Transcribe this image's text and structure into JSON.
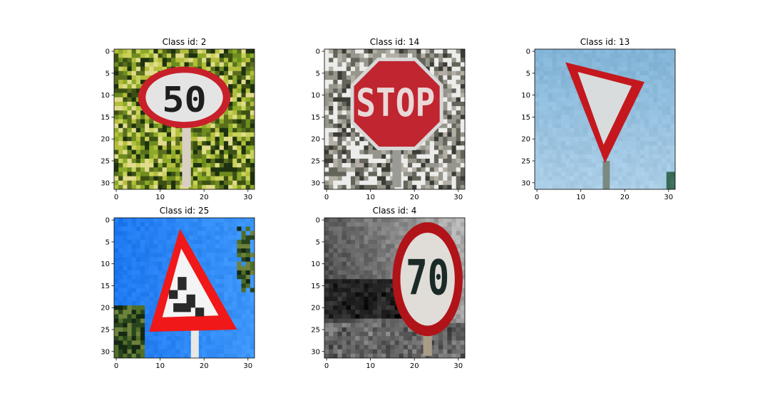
{
  "chart_data": [
    {
      "type": "image",
      "title": "Class id: 2",
      "xticks": [
        0,
        10,
        20,
        30
      ],
      "yticks": [
        0,
        5,
        10,
        15,
        20,
        25,
        30
      ],
      "xlim": [
        -0.5,
        31.5
      ],
      "ylim": [
        31.5,
        -0.5
      ],
      "scene": {
        "bg": "foliage",
        "sign": "circle",
        "rim": "#c8202a",
        "face": "#e4e4e4",
        "text": "50",
        "text_color": "#1e1e1e"
      }
    },
    {
      "type": "image",
      "title": "Class id: 14",
      "xticks": [
        0,
        10,
        20,
        30
      ],
      "yticks": [
        0,
        5,
        10,
        15,
        20,
        25,
        30
      ],
      "xlim": [
        -0.5,
        31.5
      ],
      "ylim": [
        31.5,
        -0.5
      ],
      "scene": {
        "bg": "noise",
        "sign": "octagon",
        "rim": "#d8d8d8",
        "face": "#c02630",
        "text": "STOP",
        "text_color": "#e8d8d8"
      }
    },
    {
      "type": "image",
      "title": "Class id: 13",
      "xticks": [
        0,
        10,
        20,
        30
      ],
      "yticks": [
        0,
        5,
        10,
        15,
        20,
        25,
        30
      ],
      "xlim": [
        -0.5,
        31.5
      ],
      "ylim": [
        31.5,
        -0.5
      ],
      "scene": {
        "bg": "sky",
        "sign": "inverted-triangle",
        "rim": "#c4181e",
        "face": "#d8dcdc",
        "text": "",
        "text_color": "#000000"
      }
    },
    {
      "type": "image",
      "title": "Class id: 25",
      "xticks": [
        0,
        10,
        20,
        30
      ],
      "yticks": [
        0,
        5,
        10,
        15,
        20,
        25,
        30
      ],
      "xlim": [
        -0.5,
        31.5
      ],
      "ylim": [
        31.5,
        -0.5
      ],
      "scene": {
        "bg": "bluesky",
        "sign": "triangle",
        "rim": "#f01818",
        "face": "#f4f4f4",
        "text": "",
        "text_color": "#222222"
      }
    },
    {
      "type": "image",
      "title": "Class id: 4",
      "xticks": [
        0,
        10,
        20,
        30
      ],
      "yticks": [
        0,
        5,
        10,
        15,
        20,
        25,
        30
      ],
      "xlim": [
        -0.5,
        31.5
      ],
      "ylim": [
        31.5,
        -0.5
      ],
      "scene": {
        "bg": "gray",
        "sign": "circle",
        "rim": "#b01418",
        "face": "#e0dcd8",
        "text": "70",
        "text_color": "#1a2a26"
      }
    }
  ]
}
